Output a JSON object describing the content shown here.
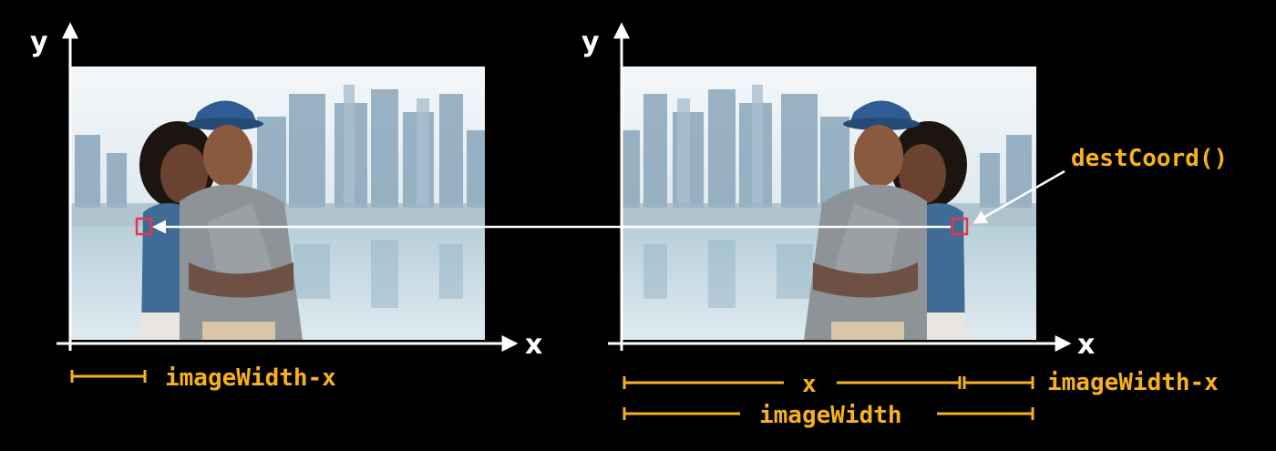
{
  "axes": {
    "left": {
      "y_label": "y",
      "x_label": "x"
    },
    "right": {
      "y_label": "y",
      "x_label": "x"
    }
  },
  "labels": {
    "left_dim": "imageWidth-x",
    "right_x": "x",
    "right_rest": "imageWidth-x",
    "right_total": "imageWidth",
    "dest": "destCoord()"
  },
  "colors": {
    "background": "#000000",
    "axis": "#ffffff",
    "label": "#f6b21c",
    "marker": "#e8344e",
    "sky": "#dfe9ef",
    "buildings": "#7f9bb1",
    "water": "#a9c6d3"
  }
}
